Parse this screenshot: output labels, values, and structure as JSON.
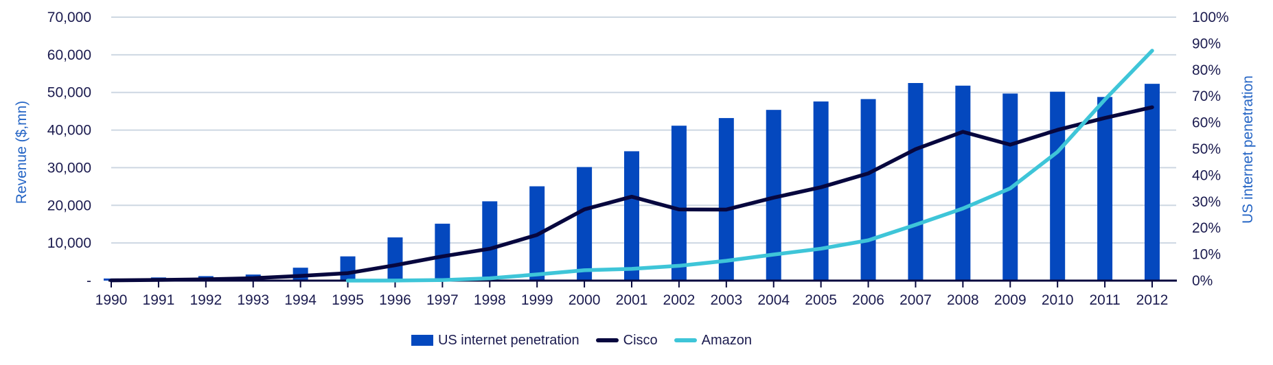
{
  "chart_data": {
    "type": "combo_bar_line",
    "title": "",
    "categories": [
      "1990",
      "1991",
      "1992",
      "1993",
      "1994",
      "1995",
      "1996",
      "1997",
      "1998",
      "1999",
      "2000",
      "2001",
      "2002",
      "2003",
      "2004",
      "2005",
      "2006",
      "2007",
      "2008",
      "2009",
      "2010",
      "2011",
      "2012"
    ],
    "series": [
      {
        "name": "US internet penetration",
        "type": "bar",
        "axis": "right",
        "color": "#0448BE",
        "unit": "%",
        "values": [
          0.8,
          1.2,
          1.7,
          2.3,
          4.9,
          9.2,
          16.4,
          21.6,
          30.1,
          35.8,
          43.1,
          49.1,
          58.8,
          61.7,
          64.8,
          68.0,
          68.9,
          75.0,
          74.0,
          71.0,
          71.7,
          69.7,
          74.7
        ]
      },
      {
        "name": "Cisco",
        "type": "line",
        "axis": "left",
        "color": "#07073E",
        "unit": "$mn",
        "values": [
          69,
          183,
          340,
          649,
          1243,
          1979,
          4096,
          6440,
          8459,
          12154,
          18928,
          22293,
          18915,
          18878,
          22045,
          24801,
          28484,
          34922,
          39540,
          36117,
          40040,
          43218,
          46061
        ]
      },
      {
        "name": "Amazon",
        "type": "line",
        "axis": "left",
        "color": "#3EC5D8",
        "unit": "$mn",
        "values": [
          null,
          null,
          null,
          null,
          null,
          0.5,
          16,
          148,
          610,
          1640,
          2762,
          3122,
          3933,
          5264,
          6921,
          8490,
          10711,
          14835,
          19166,
          24509,
          34204,
          48077,
          61093
        ]
      }
    ],
    "left_axis": {
      "title": "Revenue ($,mn)",
      "min": 0,
      "max": 70000,
      "tick_step": 10000,
      "tick_labels": [
        "-",
        "10,000",
        "20,000",
        "30,000",
        "40,000",
        "50,000",
        "60,000",
        "70,000"
      ]
    },
    "right_axis": {
      "title": "US internet penetration",
      "min": 0,
      "max": 100,
      "tick_step": 10,
      "tick_labels": [
        "0%",
        "10%",
        "20%",
        "30%",
        "40%",
        "50%",
        "60%",
        "70%",
        "80%",
        "90%",
        "100%"
      ]
    },
    "grid": {
      "horizontal": true,
      "vertical": false
    },
    "legend_position": "bottom-center"
  },
  "legend": {
    "items": [
      {
        "label": "US internet penetration",
        "swatch": "bar"
      },
      {
        "label": "Cisco",
        "swatch": "line"
      },
      {
        "label": "Amazon",
        "swatch": "line"
      }
    ]
  },
  "colors": {
    "bar_blue": "#0448BE",
    "cisco_navy": "#07073E",
    "amazon_cyan": "#3EC5D8",
    "grid": "#CDD7E2",
    "axis_line": "#07073E",
    "tick_text": "#1B1B4F",
    "axis_title": "#2565C5",
    "background": "#FFFFFF"
  }
}
